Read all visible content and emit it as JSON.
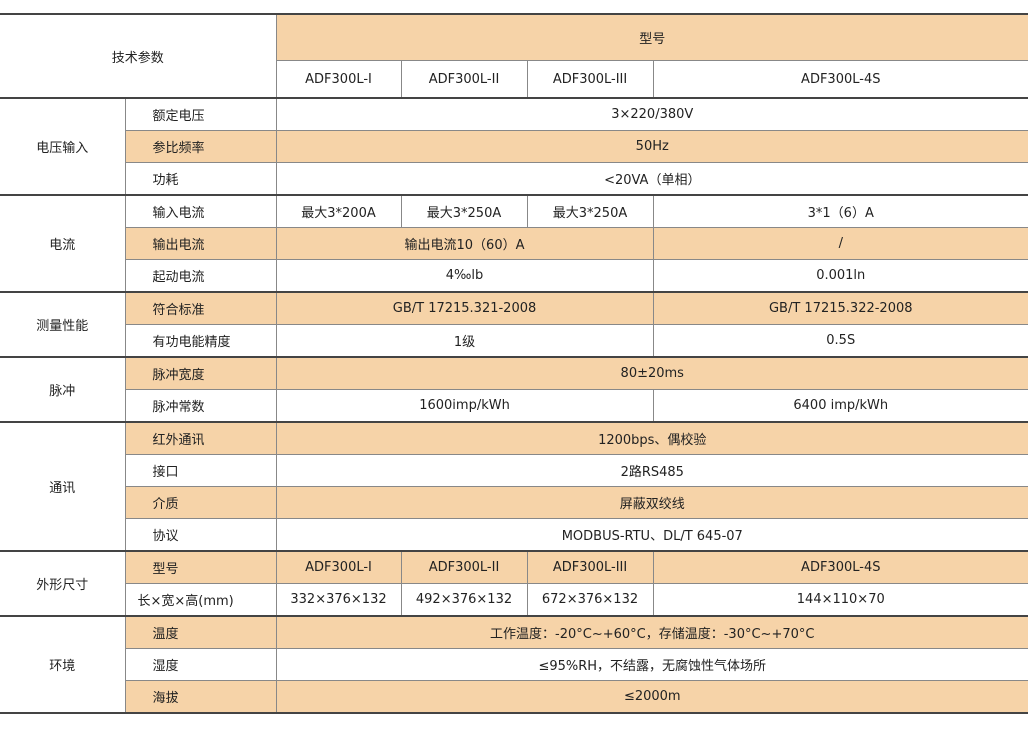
{
  "header": {
    "param": "技术参数",
    "model": "型号",
    "models": [
      "ADF300L-I",
      "ADF300L-II",
      "ADF300L-III",
      "ADF300L-4S"
    ]
  },
  "groups": {
    "voltage": {
      "name": "电压输入",
      "rows": [
        {
          "label": "额定电压",
          "value": "3×220/380V"
        },
        {
          "label": "参比频率",
          "value": "50Hz"
        },
        {
          "label": "功耗",
          "value": "<20VA（单相）"
        }
      ]
    },
    "current": {
      "name": "电流",
      "input": {
        "label": "输入电流",
        "values": [
          "最大3*200A",
          "最大3*250A",
          "最大3*250A",
          "3*1（6）A"
        ]
      },
      "output": {
        "label": "输出电流",
        "values": [
          "输出电流10（60）A",
          "/"
        ]
      },
      "start": {
        "label": "起动电流",
        "values": [
          "4‰lb",
          "0.001ln"
        ]
      }
    },
    "measure": {
      "name": "测量性能",
      "standard": {
        "label": "符合标准",
        "values": [
          "GB/T 17215.321-2008",
          "GB/T 17215.322-2008"
        ]
      },
      "accuracy": {
        "label": "有功电能精度",
        "values": [
          "1级",
          "0.5S"
        ]
      }
    },
    "pulse": {
      "name": "脉冲",
      "width": {
        "label": "脉冲宽度",
        "value": "80±20ms"
      },
      "constant": {
        "label": "脉冲常数",
        "values": [
          "1600imp/kWh",
          "6400 imp/kWh"
        ]
      }
    },
    "comm": {
      "name": "通讯",
      "rows": [
        {
          "label": "红外通讯",
          "value": "1200bps、偶校验"
        },
        {
          "label": "接口",
          "value": "2路RS485"
        },
        {
          "label": "介质",
          "value": "屏蔽双绞线"
        },
        {
          "label": "协议",
          "value": "MODBUS-RTU、DL/T 645-07"
        }
      ]
    },
    "size": {
      "name": "外形尺寸",
      "model": {
        "label": "型号",
        "values": [
          "ADF300L-I",
          "ADF300L-II",
          "ADF300L-III",
          "ADF300L-4S"
        ]
      },
      "dims": {
        "label": "长×宽×高(mm)",
        "values": [
          "332×376×132",
          "492×376×132",
          "672×376×132",
          "144×110×70"
        ]
      }
    },
    "env": {
      "name": "环境",
      "rows": [
        {
          "label": "温度",
          "value": "工作温度：-20°C~+60°C，存储温度：-30°C~+70°C"
        },
        {
          "label": "湿度",
          "value": "≤95%RH，不结露，无腐蚀性气体场所"
        },
        {
          "label": "海拔",
          "value": "≤2000m"
        }
      ]
    }
  },
  "colors": {
    "highlight": "#F6D3A8"
  }
}
